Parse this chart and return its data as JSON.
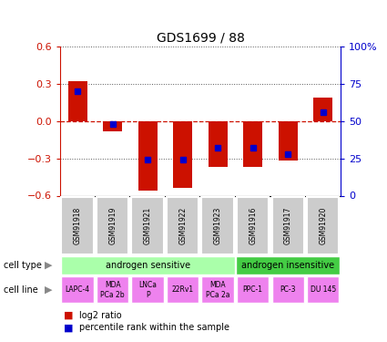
{
  "title": "GDS1699 / 88",
  "samples": [
    "GSM91918",
    "GSM91919",
    "GSM91921",
    "GSM91922",
    "GSM91923",
    "GSM91916",
    "GSM91917",
    "GSM91920"
  ],
  "log2_ratio": [
    0.32,
    -0.08,
    -0.56,
    -0.54,
    -0.37,
    -0.37,
    -0.32,
    0.19
  ],
  "pct_rank_raw": [
    70,
    48,
    24,
    24,
    32,
    32,
    28,
    56
  ],
  "ylim": [
    -0.6,
    0.6
  ],
  "yticks_left": [
    -0.6,
    -0.3,
    0,
    0.3,
    0.6
  ],
  "yticks_right": [
    0,
    25,
    50,
    75,
    100
  ],
  "bar_color": "#cc1100",
  "dot_color": "#0000cc",
  "cell_type_groups": [
    {
      "label": "androgen sensitive",
      "start": 0,
      "end": 4,
      "color": "#aaffaa"
    },
    {
      "label": "androgen insensitive",
      "start": 5,
      "end": 7,
      "color": "#44cc44"
    }
  ],
  "cell_lines": [
    "LAPC-4",
    "MDA\nPCa 2b",
    "LNCa\nP",
    "22Rv1",
    "MDA\nPCa 2a",
    "PPC-1",
    "PC-3",
    "DU 145"
  ],
  "cell_line_color": "#ee82ee",
  "gsm_bg_color": "#cccccc",
  "label_cell_type": "cell type",
  "label_cell_line": "cell line",
  "legend_log2": "log2 ratio",
  "legend_pct": "percentile rank within the sample",
  "zero_line_color": "#cc1100",
  "right_axis_color": "#0000cc",
  "left_axis_color": "#cc1100"
}
